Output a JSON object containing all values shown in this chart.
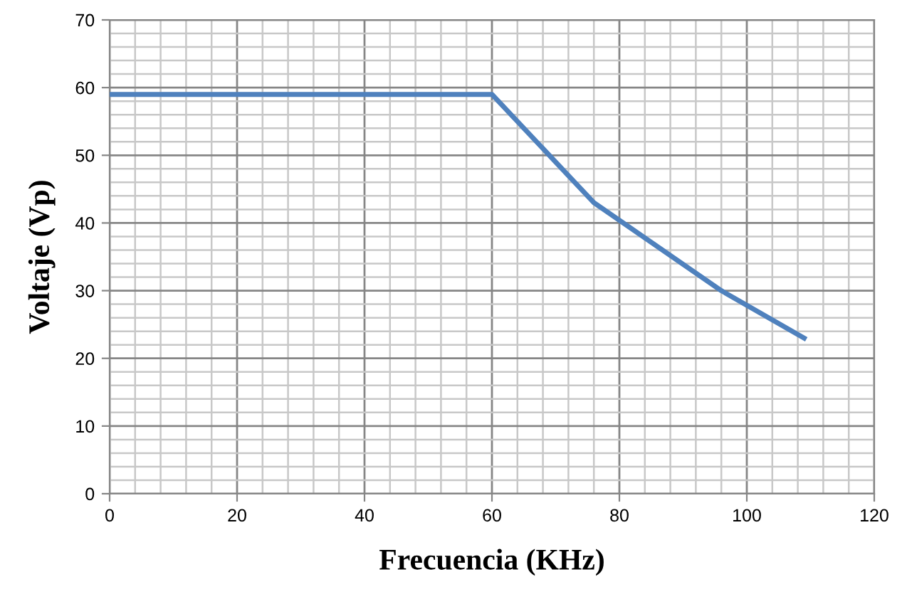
{
  "chart_data": {
    "type": "line",
    "xlabel": "Frecuencia (KHz)",
    "ylabel": "Voltaje (Vp)",
    "series": [
      {
        "color": "#4f81bd",
        "x": [
          0,
          60,
          76,
          96,
          109
        ],
        "values": [
          59,
          59,
          43,
          30,
          23
        ]
      }
    ],
    "xlim": [
      0,
      120
    ],
    "xticks": [
      0,
      20,
      40,
      60,
      80,
      100,
      120
    ],
    "ylim": [
      0,
      70
    ],
    "yticks": [
      0,
      10,
      20,
      30,
      40,
      50,
      60,
      70
    ],
    "grid": true,
    "legend": false,
    "marker": "none",
    "line_style": "solid"
  }
}
